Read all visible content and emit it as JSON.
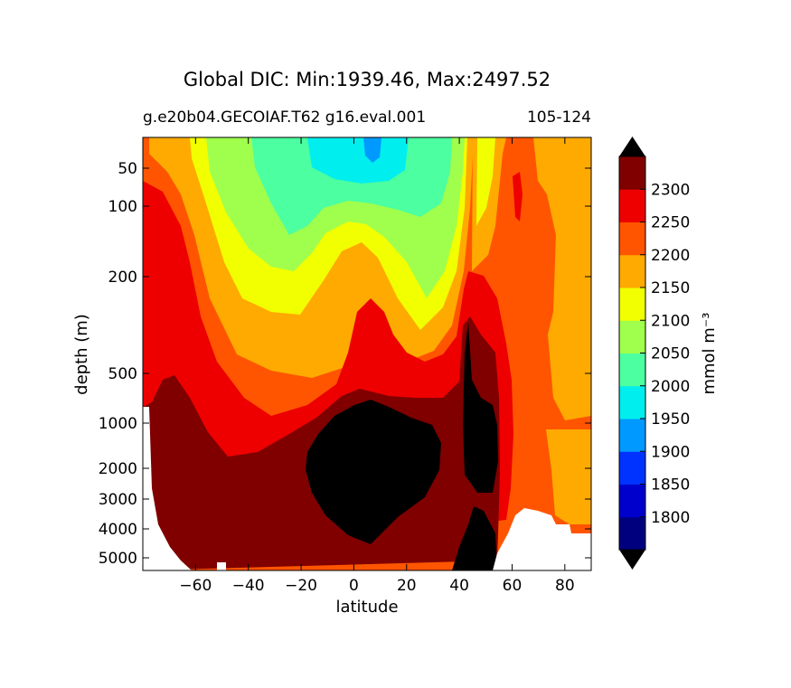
{
  "chart_data": {
    "type": "heatmap",
    "subtype": "filled-contour",
    "title": "Global DIC: Min:1939.46, Max:2497.52",
    "subtitle": "g.e20b04.GECOIAF.T62 g16.eval.001",
    "period_label": "105-124",
    "xlabel": "latitude",
    "ylabel": "depth (m)",
    "xlim": [
      -80,
      90
    ],
    "ylim": [
      5500,
      0
    ],
    "y_scale": "nonlinear (stretched upper ocean)",
    "x_ticks": [
      -60,
      -40,
      -20,
      0,
      20,
      40,
      60,
      80
    ],
    "x_tick_labels": [
      "−60",
      "−40",
      "−20",
      "0",
      "20",
      "40",
      "60",
      "80"
    ],
    "y_ticks": [
      50,
      100,
      200,
      500,
      1000,
      2000,
      3000,
      4000,
      5000
    ],
    "y_tick_labels": [
      "50",
      "100",
      "200",
      "500",
      "1000",
      "2000",
      "3000",
      "4000",
      "5000"
    ],
    "colorbar": {
      "label": "mmol m⁻³",
      "levels": [
        1800,
        1850,
        1900,
        1950,
        2000,
        2050,
        2100,
        2150,
        2200,
        2250,
        2300
      ],
      "level_labels": [
        "1800",
        "1850",
        "1900",
        "1950",
        "2000",
        "2050",
        "2100",
        "2150",
        "2200",
        "2250",
        "2300"
      ],
      "colors": [
        "#00007f",
        "#0000cc",
        "#0033ff",
        "#0099ff",
        "#00eeee",
        "#4cffa0",
        "#a0ff4c",
        "#f2ff00",
        "#ffaa00",
        "#ff5500",
        "#ee0000",
        "#800000"
      ],
      "under_color": "#000000",
      "over_color": "#000000",
      "extend": "both"
    },
    "no_data_color": "#ffffff",
    "description": "Zonal-mean DIC section; lowest concentrations (1950-2050) in upper subtropical ocean near equator, highest (>2300) in deep Pacific-like basin 0-40N and near 45N."
  }
}
